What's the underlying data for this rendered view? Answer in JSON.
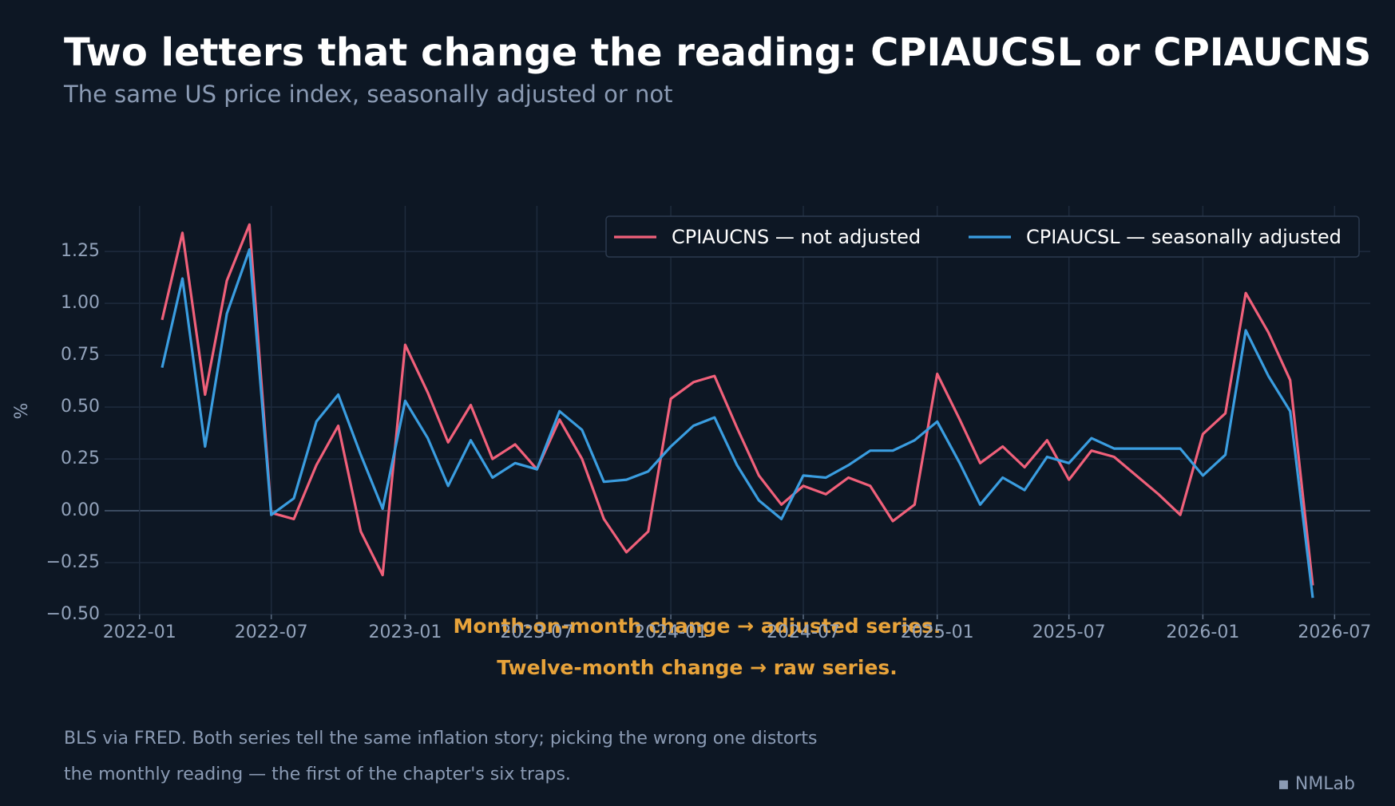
{
  "chart_data": {
    "type": "line",
    "title": "Two letters that change the reading: CPIAUCSL or CPIAUCNS",
    "subtitle": "The same US price index, seasonally adjusted or not",
    "y_label": "%",
    "annotations": [
      "Month-on-month change → adjusted series.",
      "Twelve-month change → raw series."
    ],
    "footer": [
      "BLS via FRED. Both series tell the same inflation story; picking the wrong one distorts",
      "the monthly reading — the first of the chapter's six traps."
    ],
    "brand": "▪ NMLab",
    "grid": true,
    "legend": "upper right",
    "x": [
      "2022-02",
      "2022-03",
      "2022-04",
      "2022-05",
      "2022-06",
      "2022-07",
      "2022-08",
      "2022-09",
      "2022-10",
      "2022-11",
      "2022-12",
      "2023-01",
      "2023-02",
      "2023-03",
      "2023-04",
      "2023-05",
      "2023-06",
      "2023-07",
      "2023-08",
      "2023-09",
      "2023-10",
      "2023-11",
      "2023-12",
      "2024-01",
      "2024-02",
      "2024-03",
      "2024-04",
      "2024-05",
      "2024-06",
      "2024-07",
      "2024-08",
      "2024-09",
      "2024-10",
      "2024-11",
      "2024-12",
      "2025-01",
      "2025-02",
      "2025-03",
      "2025-04",
      "2025-05",
      "2025-06",
      "2025-07",
      "2025-08",
      "2025-09",
      "2025-11",
      "2025-12",
      "2026-01",
      "2026-02",
      "2026-03",
      "2026-04",
      "2026-05",
      "2026-06"
    ],
    "series": [
      {
        "name": "CPIAUCNS — not adjusted",
        "color": "#f0607a",
        "values": [
          0.92,
          1.34,
          0.56,
          1.11,
          1.38,
          -0.01,
          -0.04,
          0.22,
          0.41,
          -0.1,
          -0.31,
          0.8,
          0.57,
          0.33,
          0.51,
          0.25,
          0.32,
          0.2,
          0.44,
          0.25,
          -0.04,
          -0.2,
          -0.1,
          0.54,
          0.62,
          0.65,
          0.4,
          0.17,
          0.03,
          0.12,
          0.08,
          0.16,
          0.12,
          -0.05,
          0.03,
          0.66,
          0.44,
          0.23,
          0.31,
          0.21,
          0.34,
          0.15,
          0.29,
          0.26,
          0.08,
          -0.02,
          0.37,
          0.47,
          1.05,
          0.86,
          0.63,
          -0.36
        ]
      },
      {
        "name": "CPIAUCSL — seasonally adjusted",
        "color": "#3a9de0",
        "values": [
          0.69,
          1.12,
          0.31,
          0.95,
          1.26,
          -0.02,
          0.06,
          0.43,
          0.56,
          0.27,
          0.01,
          0.53,
          0.35,
          0.12,
          0.34,
          0.16,
          0.23,
          0.2,
          0.48,
          0.39,
          0.14,
          0.15,
          0.19,
          0.31,
          0.41,
          0.45,
          0.22,
          0.05,
          -0.04,
          0.17,
          0.16,
          0.22,
          0.29,
          0.29,
          0.34,
          0.43,
          0.23,
          0.03,
          0.16,
          0.1,
          0.26,
          0.23,
          0.35,
          0.3,
          0.3,
          0.3,
          0.17,
          0.27,
          0.87,
          0.65,
          0.48,
          -0.42
        ]
      }
    ],
    "xlim": [
      "2021-11-14",
      "2026-08-19"
    ],
    "xticks": [
      "2022-01",
      "2022-07",
      "2023-01",
      "2023-07",
      "2024-01",
      "2024-07",
      "2025-01",
      "2025-07",
      "2026-01",
      "2026-07"
    ],
    "ylim": [
      -0.5,
      1.47
    ],
    "yticks": [
      {
        "value": -0.5,
        "label": "−0.50"
      },
      {
        "value": -0.25,
        "label": "−0.25"
      },
      {
        "value": 0,
        "label": "0.00"
      },
      {
        "value": 0.25,
        "label": "0.25"
      },
      {
        "value": 0.5,
        "label": "0.50"
      },
      {
        "value": 0.75,
        "label": "0.75"
      },
      {
        "value": 1,
        "label": "1.00"
      },
      {
        "value": 1.25,
        "label": "1.25"
      }
    ]
  }
}
